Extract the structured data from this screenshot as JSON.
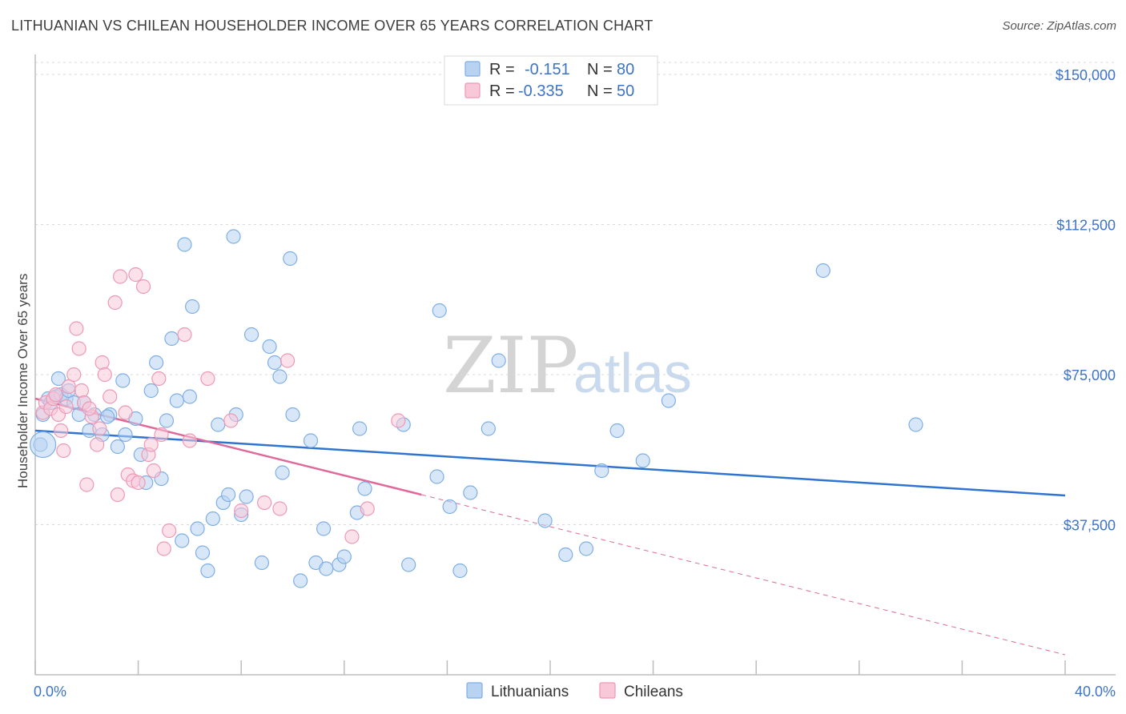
{
  "title": "LITHUANIAN VS CHILEAN HOUSEHOLDER INCOME OVER 65 YEARS CORRELATION CHART",
  "source": "Source: ZipAtlas.com",
  "watermark": {
    "zip": "ZIP",
    "atlas": "atlas"
  },
  "legend": {
    "rows": [
      {
        "r_label": "R =",
        "r_value": "-0.151",
        "n_label": "N =",
        "n_value": "80",
        "color": "#7eaee5",
        "fill": "#b8d3f2"
      },
      {
        "r_label": "R =",
        "r_value": "-0.335",
        "n_label": "N =",
        "n_value": "50",
        "color": "#ee98b4",
        "fill": "#f8c8d8"
      }
    ]
  },
  "bottom_legend": [
    {
      "label": "Lithuanians",
      "color": "#7eaee5",
      "fill": "#b8d3f2"
    },
    {
      "label": "Chileans",
      "color": "#ee98b4",
      "fill": "#f8c8d8"
    }
  ],
  "chart_data": {
    "type": "scatter",
    "title": "LITHUANIAN VS CHILEAN HOUSEHOLDER INCOME OVER 65 YEARS CORRELATION CHART",
    "xlabel": "",
    "ylabel": "Householder Income Over 65 years",
    "xlim": [
      0,
      40
    ],
    "ylim": [
      0,
      153000
    ],
    "x_tick_labels": [
      "0.0%",
      "40.0%"
    ],
    "y_ticks": [
      37500,
      75000,
      112500,
      150000
    ],
    "y_tick_labels": [
      "$37,500",
      "$75,000",
      "$112,500",
      "$150,000"
    ],
    "series": [
      {
        "name": "Lithuanians",
        "color": "#7eaee5",
        "fill": "#b8d3f2",
        "line_color": "#2f74cf",
        "trend": {
          "x": [
            0,
            40
          ],
          "y": [
            61000,
            44800
          ]
        },
        "points": [
          [
            0.2,
            57500
          ],
          [
            0.3,
            65000
          ],
          [
            0.5,
            69000
          ],
          [
            0.6,
            68000
          ],
          [
            0.8,
            69500
          ],
          [
            0.9,
            74000
          ],
          [
            1.0,
            70000
          ],
          [
            1.2,
            69000
          ],
          [
            1.3,
            71000
          ],
          [
            1.5,
            68000
          ],
          [
            1.7,
            65000
          ],
          [
            1.9,
            68000
          ],
          [
            2.1,
            61000
          ],
          [
            2.3,
            65000
          ],
          [
            2.6,
            60000
          ],
          [
            2.9,
            65000
          ],
          [
            3.2,
            57000
          ],
          [
            3.4,
            73500
          ],
          [
            3.5,
            60000
          ],
          [
            3.9,
            64000
          ],
          [
            4.1,
            55000
          ],
          [
            4.3,
            48000
          ],
          [
            4.5,
            71000
          ],
          [
            4.7,
            78000
          ],
          [
            4.9,
            49000
          ],
          [
            5.1,
            63500
          ],
          [
            5.3,
            84000
          ],
          [
            5.5,
            68500
          ],
          [
            5.7,
            33500
          ],
          [
            5.8,
            107500
          ],
          [
            6.0,
            69500
          ],
          [
            6.1,
            92000
          ],
          [
            6.3,
            36500
          ],
          [
            6.5,
            30500
          ],
          [
            6.7,
            26000
          ],
          [
            6.9,
            39000
          ],
          [
            7.1,
            62500
          ],
          [
            7.3,
            43000
          ],
          [
            7.5,
            45000
          ],
          [
            7.7,
            109500
          ],
          [
            7.8,
            65000
          ],
          [
            8.0,
            40000
          ],
          [
            8.4,
            85000
          ],
          [
            8.8,
            28000
          ],
          [
            9.1,
            82000
          ],
          [
            9.3,
            78000
          ],
          [
            9.5,
            74500
          ],
          [
            9.6,
            50500
          ],
          [
            9.9,
            104000
          ],
          [
            10.0,
            65000
          ],
          [
            10.3,
            23500
          ],
          [
            10.7,
            58500
          ],
          [
            10.9,
            28000
          ],
          [
            11.2,
            36500
          ],
          [
            11.3,
            26500
          ],
          [
            11.8,
            27500
          ],
          [
            12.0,
            29500
          ],
          [
            12.5,
            40500
          ],
          [
            12.6,
            61500
          ],
          [
            12.8,
            46500
          ],
          [
            14.3,
            62500
          ],
          [
            14.5,
            27500
          ],
          [
            15.6,
            49500
          ],
          [
            15.7,
            91000
          ],
          [
            16.1,
            42000
          ],
          [
            16.5,
            26000
          ],
          [
            16.9,
            45500
          ],
          [
            17.6,
            61500
          ],
          [
            18.0,
            78500
          ],
          [
            19.8,
            38500
          ],
          [
            20.6,
            30000
          ],
          [
            21.4,
            31500
          ],
          [
            22.0,
            51000
          ],
          [
            22.6,
            61000
          ],
          [
            23.6,
            53500
          ],
          [
            24.6,
            68500
          ],
          [
            30.6,
            101000
          ],
          [
            34.2,
            62500
          ],
          [
            2.8,
            64500
          ],
          [
            8.2,
            44500
          ]
        ]
      },
      {
        "name": "Chileans",
        "color": "#ee98b4",
        "fill": "#f8c8d8",
        "line_color": "#e0699a",
        "trend": {
          "x": [
            0,
            15
          ],
          "y": [
            69000,
            45000
          ]
        },
        "trend_ext": {
          "x": [
            15,
            40
          ],
          "y": [
            45000,
            5000
          ]
        },
        "points": [
          [
            0.3,
            65500
          ],
          [
            0.4,
            68000
          ],
          [
            0.6,
            66500
          ],
          [
            0.7,
            69000
          ],
          [
            0.8,
            70000
          ],
          [
            0.9,
            65000
          ],
          [
            1.0,
            61000
          ],
          [
            1.1,
            56000
          ],
          [
            1.3,
            72000
          ],
          [
            1.5,
            75000
          ],
          [
            1.6,
            86500
          ],
          [
            1.7,
            81500
          ],
          [
            1.8,
            71000
          ],
          [
            1.9,
            68000
          ],
          [
            2.0,
            47500
          ],
          [
            2.2,
            64500
          ],
          [
            2.4,
            57500
          ],
          [
            2.5,
            61500
          ],
          [
            2.6,
            78000
          ],
          [
            2.7,
            75000
          ],
          [
            2.9,
            69500
          ],
          [
            3.1,
            93000
          ],
          [
            3.2,
            45000
          ],
          [
            3.3,
            99500
          ],
          [
            3.5,
            65500
          ],
          [
            3.6,
            50000
          ],
          [
            3.8,
            48500
          ],
          [
            3.9,
            100000
          ],
          [
            4.0,
            48000
          ],
          [
            4.2,
            97000
          ],
          [
            4.4,
            55000
          ],
          [
            4.5,
            57500
          ],
          [
            4.6,
            51000
          ],
          [
            4.8,
            74000
          ],
          [
            4.9,
            60000
          ],
          [
            5.0,
            31500
          ],
          [
            5.2,
            36000
          ],
          [
            5.8,
            85000
          ],
          [
            6.0,
            58500
          ],
          [
            6.7,
            74000
          ],
          [
            7.6,
            63500
          ],
          [
            8.0,
            41000
          ],
          [
            8.9,
            43000
          ],
          [
            9.5,
            41500
          ],
          [
            9.8,
            78500
          ],
          [
            12.3,
            34500
          ],
          [
            12.9,
            41500
          ],
          [
            14.1,
            63500
          ],
          [
            1.2,
            67000
          ],
          [
            2.1,
            66500
          ]
        ]
      }
    ]
  }
}
